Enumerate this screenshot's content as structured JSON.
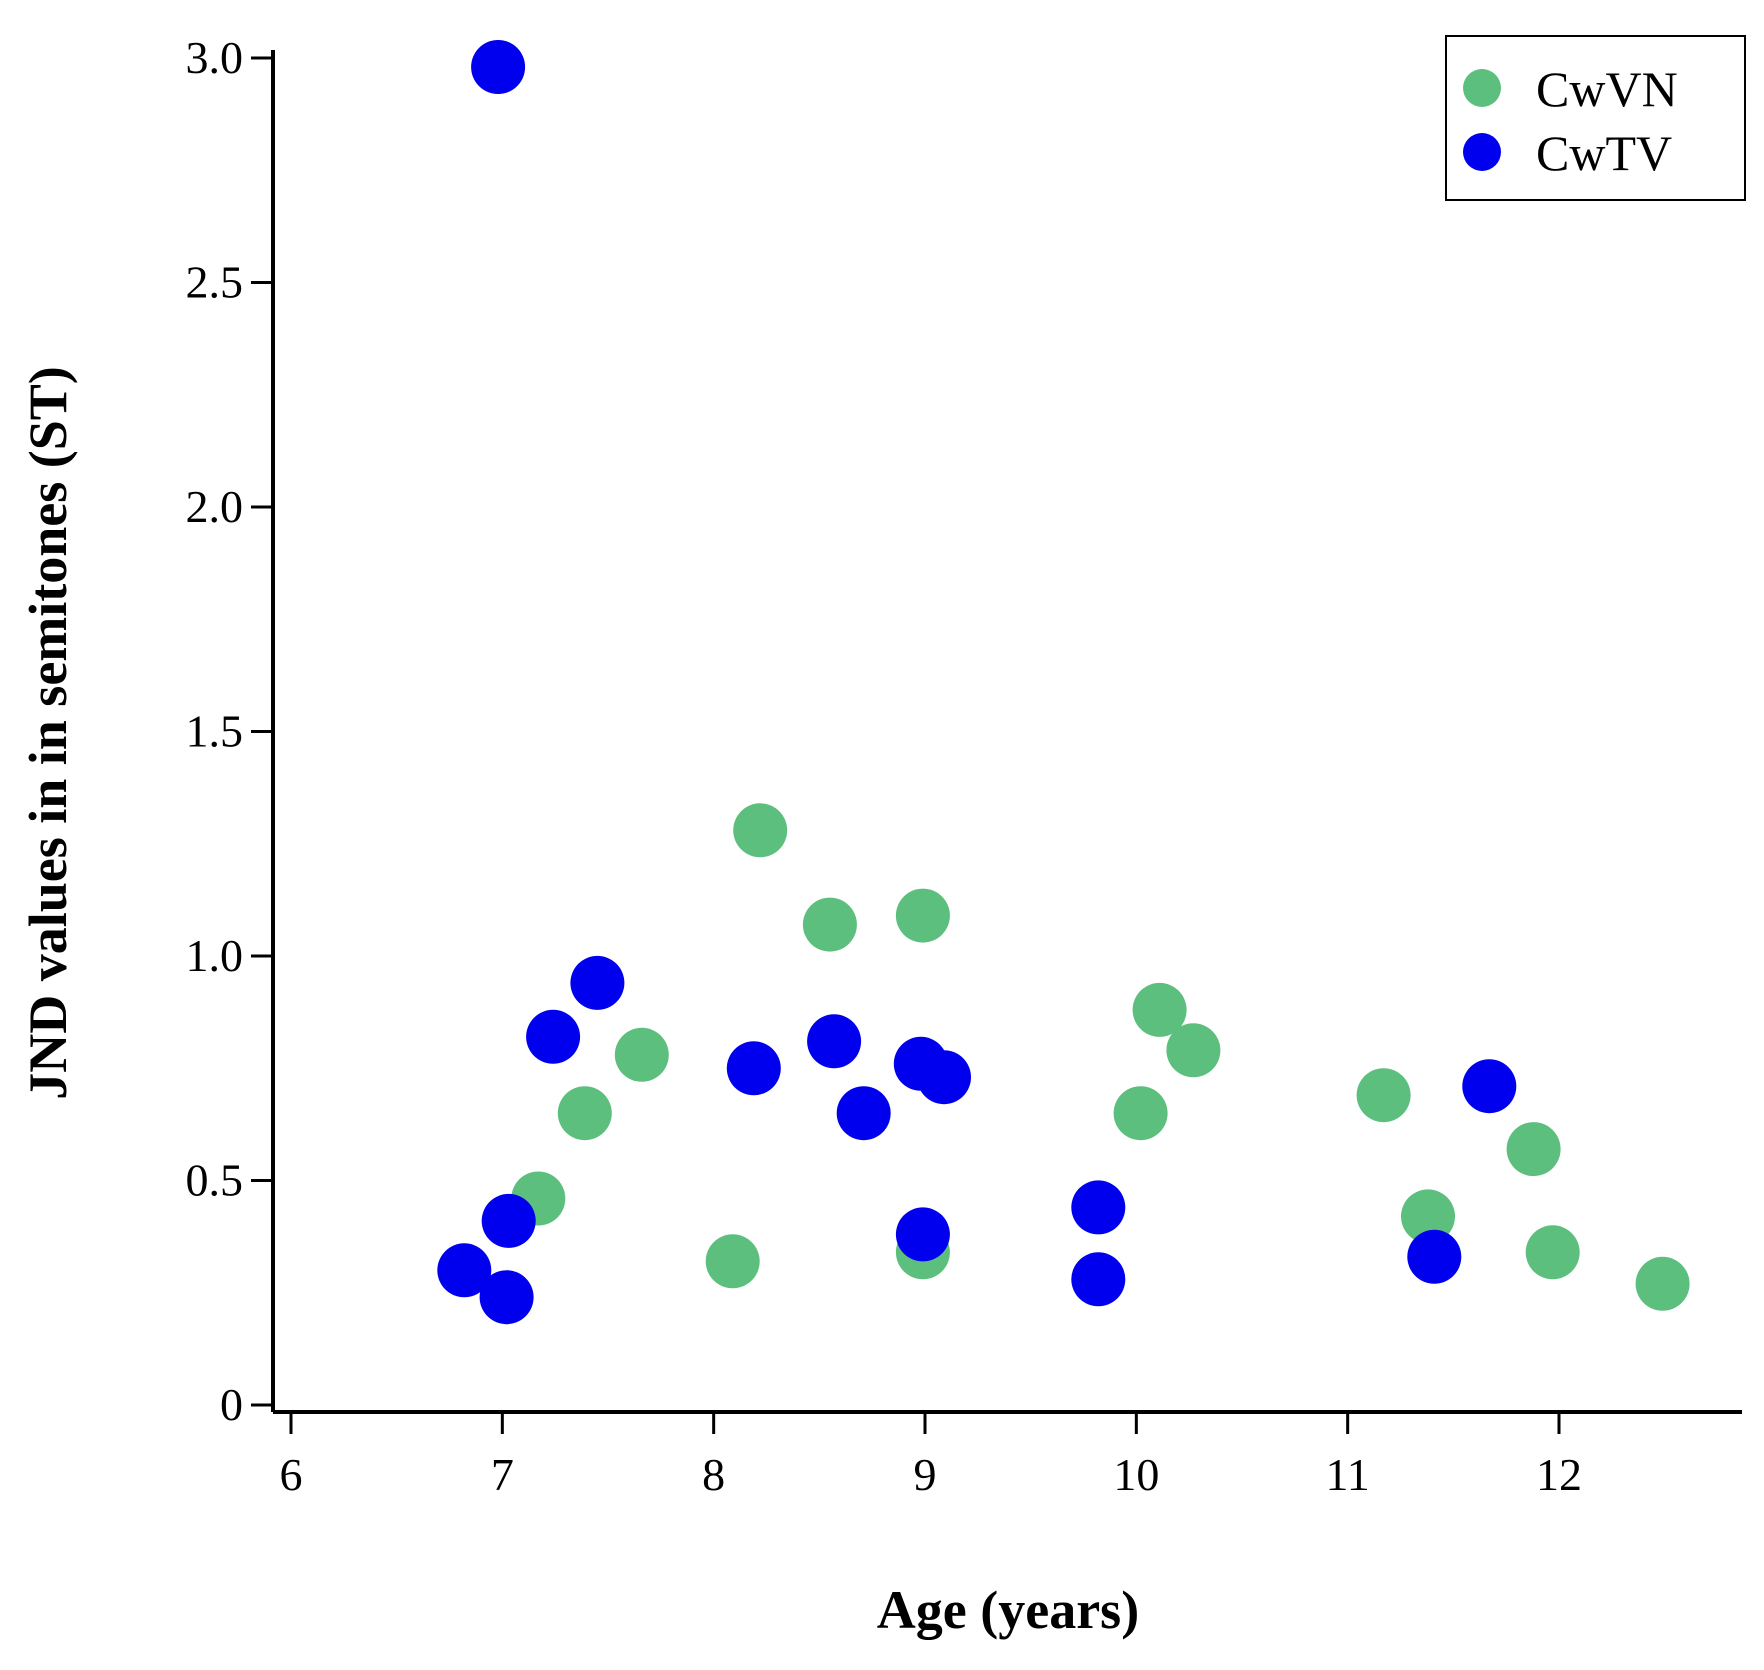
{
  "chart_data": {
    "type": "scatter",
    "title": "",
    "xlabel": "Age (years)",
    "ylabel": "JND values in in semitones (ST)",
    "xlim": [
      6,
      12.9
    ],
    "ylim": [
      0,
      3.0
    ],
    "xticks": [
      6,
      7,
      8,
      9,
      10,
      11,
      12
    ],
    "xtick_labels": [
      "6",
      "7",
      "8",
      "9",
      "10",
      "11",
      "12"
    ],
    "yticks": [
      0,
      0.5,
      1.0,
      1.5,
      2.0,
      2.5,
      3.0
    ],
    "ytick_labels": [
      "0",
      "0.5",
      "1.0",
      "1.5",
      "2.0",
      "2.5",
      "3.0"
    ],
    "grid": false,
    "legend_position": "top-right",
    "series": [
      {
        "name": "CwVN",
        "color": "#5cbf7e",
        "points": [
          {
            "x": 7.17,
            "y": 0.46
          },
          {
            "x": 7.39,
            "y": 0.65
          },
          {
            "x": 7.66,
            "y": 0.78
          },
          {
            "x": 8.09,
            "y": 0.32
          },
          {
            "x": 8.22,
            "y": 1.28
          },
          {
            "x": 8.55,
            "y": 1.07
          },
          {
            "x": 8.99,
            "y": 1.09
          },
          {
            "x": 8.99,
            "y": 0.34
          },
          {
            "x": 10.02,
            "y": 0.65
          },
          {
            "x": 10.11,
            "y": 0.88
          },
          {
            "x": 10.27,
            "y": 0.79
          },
          {
            "x": 11.17,
            "y": 0.69
          },
          {
            "x": 11.38,
            "y": 0.42
          },
          {
            "x": 11.88,
            "y": 0.57
          },
          {
            "x": 11.97,
            "y": 0.34
          },
          {
            "x": 12.49,
            "y": 0.27
          }
        ]
      },
      {
        "name": "CwTV",
        "color": "#0000ee",
        "points": [
          {
            "x": 6.98,
            "y": 2.98
          },
          {
            "x": 6.82,
            "y": 0.3
          },
          {
            "x": 7.03,
            "y": 0.41
          },
          {
            "x": 7.02,
            "y": 0.24
          },
          {
            "x": 7.24,
            "y": 0.82
          },
          {
            "x": 7.45,
            "y": 0.94
          },
          {
            "x": 8.19,
            "y": 0.75
          },
          {
            "x": 8.57,
            "y": 0.81
          },
          {
            "x": 8.71,
            "y": 0.65
          },
          {
            "x": 8.98,
            "y": 0.76
          },
          {
            "x": 9.09,
            "y": 0.73
          },
          {
            "x": 8.99,
            "y": 0.38
          },
          {
            "x": 9.82,
            "y": 0.44
          },
          {
            "x": 9.82,
            "y": 0.28
          },
          {
            "x": 11.41,
            "y": 0.33
          },
          {
            "x": 11.67,
            "y": 0.71
          }
        ]
      }
    ]
  }
}
